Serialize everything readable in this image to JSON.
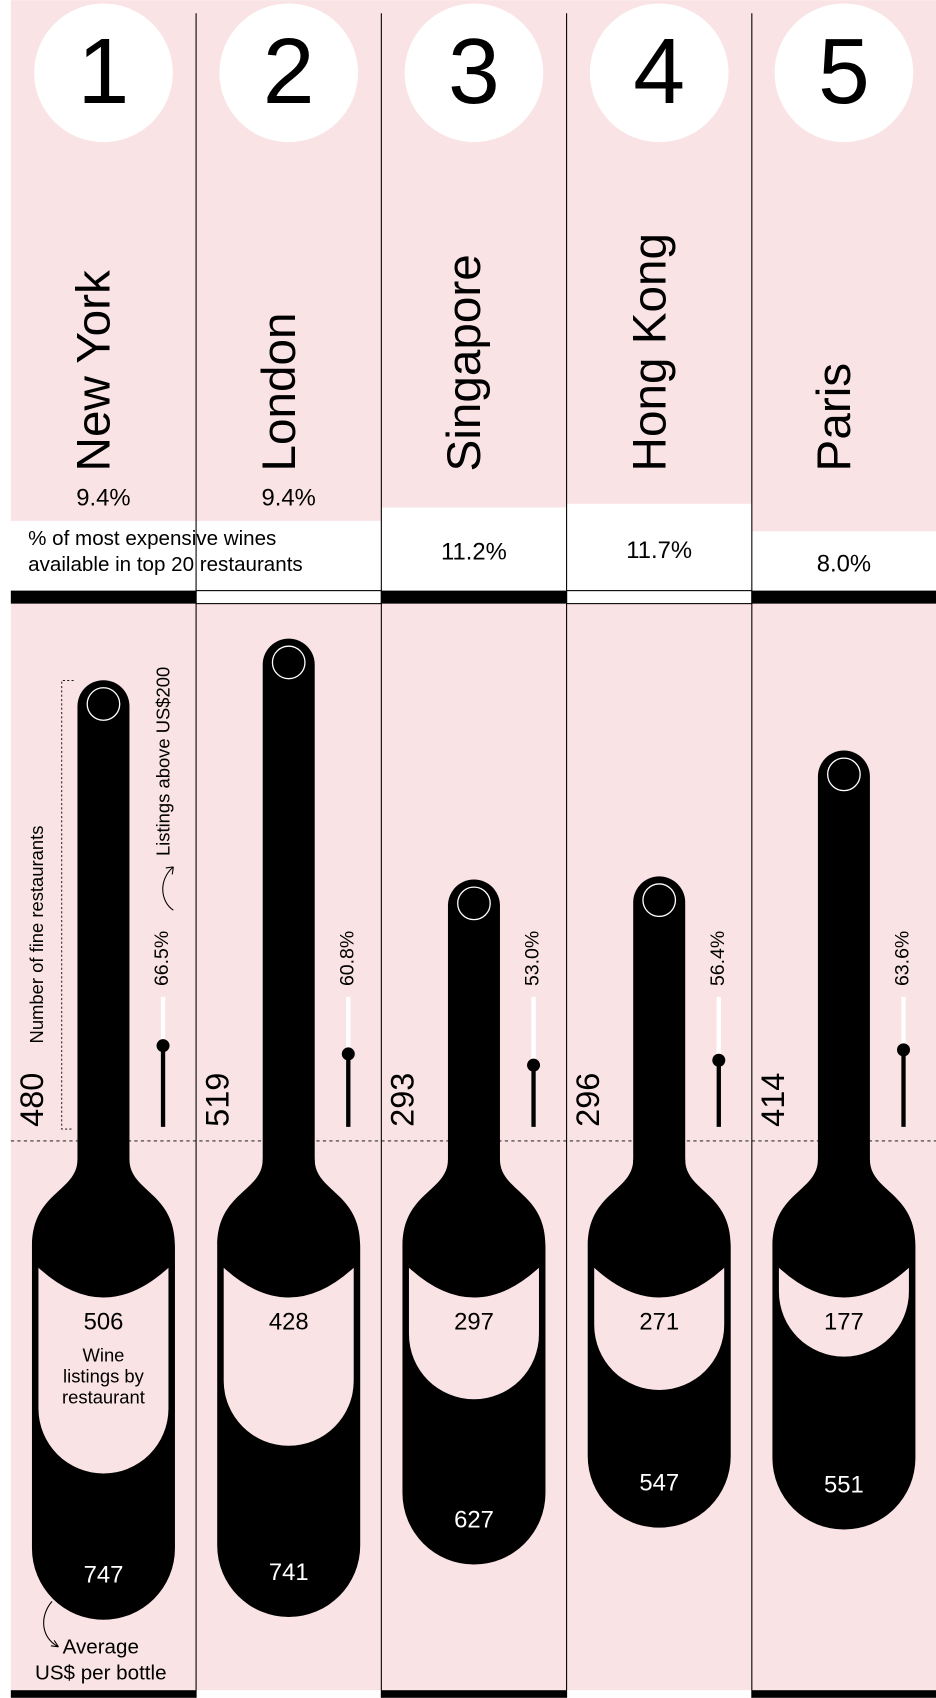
{
  "chart_data": {
    "type": "bottle",
    "ranks": [
      1,
      2,
      3,
      4,
      5
    ],
    "categories": [
      "New York",
      "London",
      "Singapore",
      "Hong Kong",
      "Paris"
    ],
    "share_label": [
      "% of most expensive wines",
      "available in top 20 restaurants"
    ],
    "share_values": [
      9.4,
      9.4,
      11.2,
      11.7,
      8.0
    ],
    "share_value_labels": [
      "9.4%",
      "9.4%",
      "11.2%",
      "11.7%",
      "8.0%"
    ],
    "restaurants_label": "Number of fine restaurants",
    "restaurants": [
      480,
      519,
      293,
      296,
      414
    ],
    "above200_label": "Listings above US$200",
    "above200": [
      66.5,
      60.8,
      53.0,
      56.4,
      63.6
    ],
    "above200_value_labels": [
      "66.5%",
      "60.8%",
      "53.0%",
      "56.4%",
      "63.6%"
    ],
    "listings_label": [
      "Wine",
      "listings by",
      "restaurant"
    ],
    "listings": [
      506,
      428,
      297,
      271,
      177
    ],
    "price_label": [
      "Average",
      "US$ per bottle"
    ],
    "price": [
      747,
      741,
      627,
      547,
      551
    ]
  }
}
